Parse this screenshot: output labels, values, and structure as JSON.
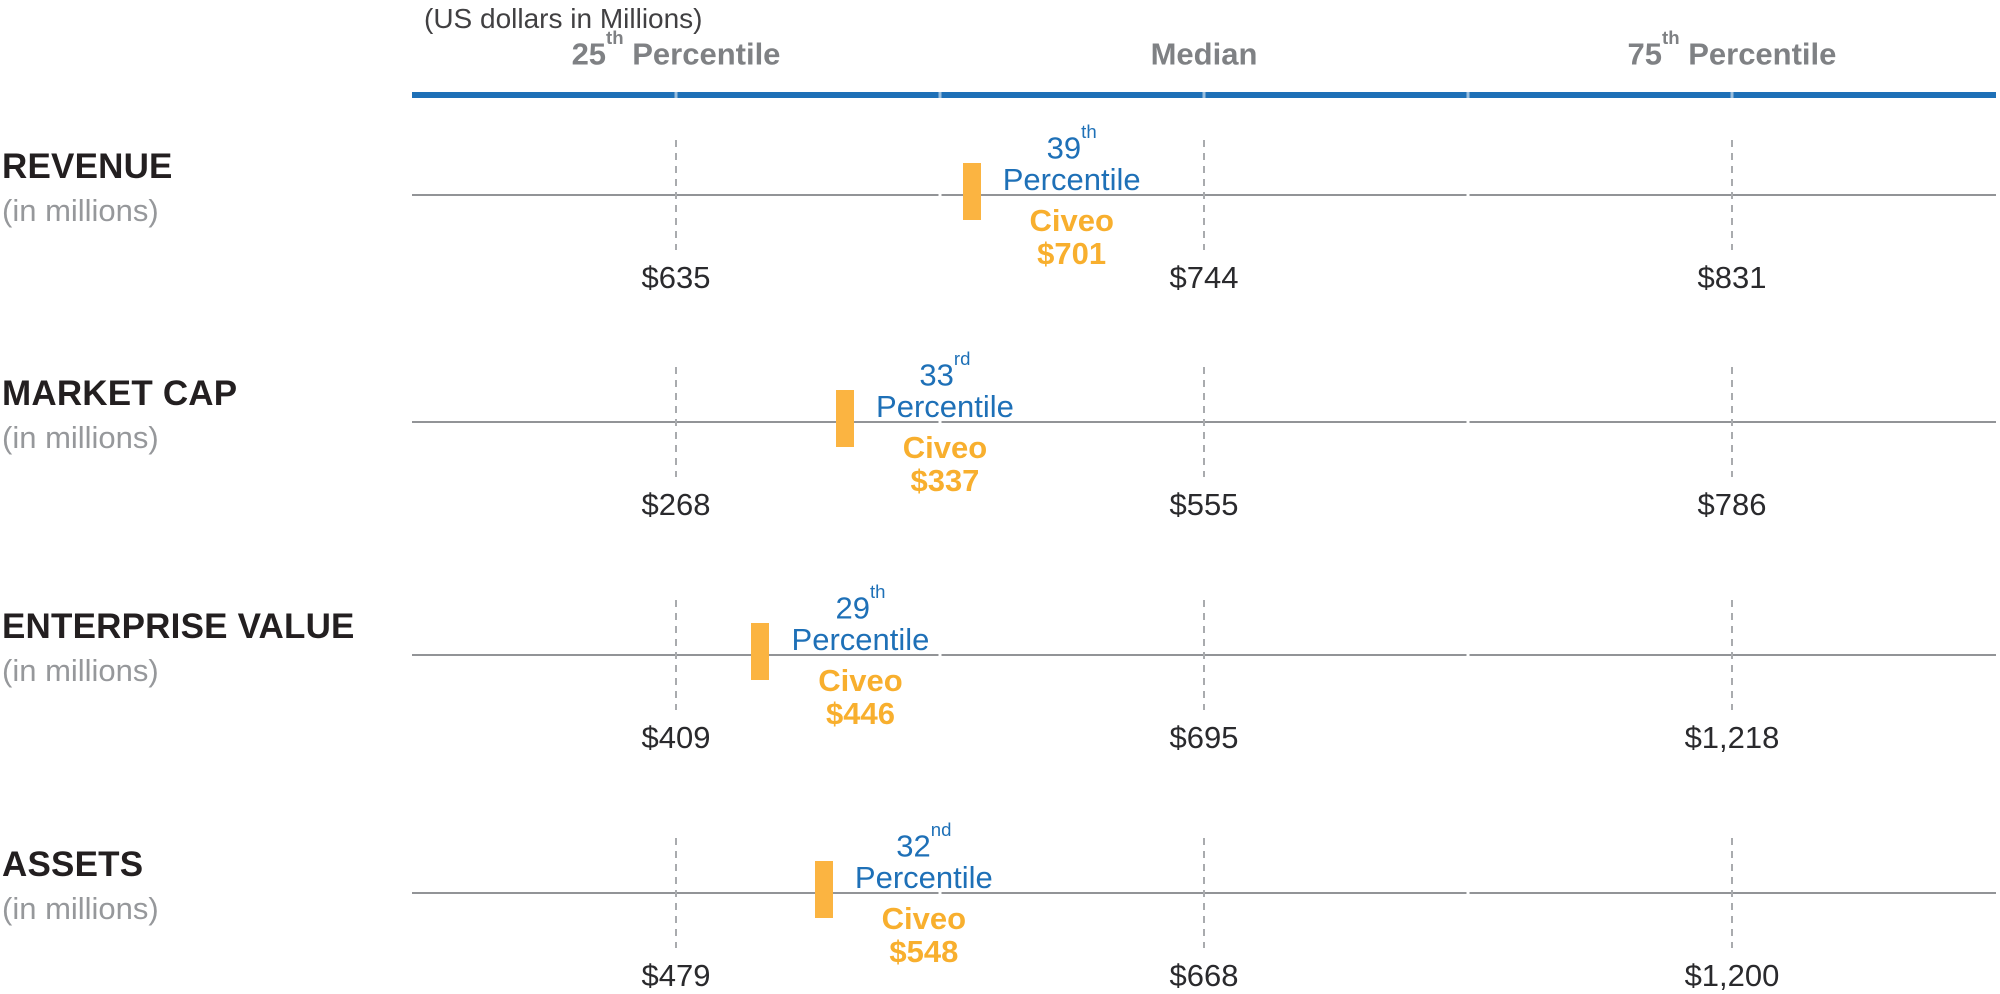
{
  "header": {
    "units_label": "(US dollars in Millions)"
  },
  "colors": {
    "accent_blue": "#1E70B7",
    "marker_orange": "#FBB441",
    "callout_orange": "#F8AF2E",
    "grid_gray": "#929497",
    "dash_gray": "#A9ABAE",
    "header_gray": "#7F8184",
    "label_black": "#231F20",
    "sub_gray": "#96989B",
    "value_black": "#2A2A2D"
  },
  "chart_data": {
    "type": "scatter",
    "subtitle": "(US dollars in Millions)",
    "legend_position": "none",
    "grid": "dashed vertical quartile lines",
    "x_axis_note": "position along each line encodes percentile rank vs peers (25th / 50th / 75th marked)",
    "header_columns": [
      {
        "text": "25",
        "sup": "th",
        "rest": " Percentile"
      },
      {
        "text": "Median",
        "sup": "",
        "rest": ""
      },
      {
        "text": "75",
        "sup": "th",
        "rest": " Percentile"
      }
    ],
    "column_axis_pct": [
      16.667,
      50,
      83.333
    ],
    "company": "Civeo",
    "rows": [
      {
        "metric": "REVENUE",
        "sublabel": "(in millions)",
        "p25": 635,
        "median": 744,
        "p75": 831,
        "p25_display": "$635",
        "median_display": "$744",
        "p75_display": "$831",
        "company": "Civeo",
        "company_value": 701,
        "company_value_display": "$701",
        "percentile": 39,
        "percentile_display": "39",
        "percentile_suffix": "th",
        "percentile_word": "Percentile"
      },
      {
        "metric": "MARKET CAP",
        "sublabel": "(in millions)",
        "p25": 268,
        "median": 555,
        "p75": 786,
        "p25_display": "$268",
        "median_display": "$555",
        "p75_display": "$786",
        "company": "Civeo",
        "company_value": 337,
        "company_value_display": "$337",
        "percentile": 33,
        "percentile_display": "33",
        "percentile_suffix": "rd",
        "percentile_word": "Percentile"
      },
      {
        "metric": "ENTERPRISE VALUE",
        "sublabel": "(in millions)",
        "p25": 409,
        "median": 695,
        "p75": 1218,
        "p25_display": "$409",
        "median_display": "$695",
        "p75_display": "$1,218",
        "company": "Civeo",
        "company_value": 446,
        "company_value_display": "$446",
        "percentile": 29,
        "percentile_display": "29",
        "percentile_suffix": "th",
        "percentile_word": "Percentile"
      },
      {
        "metric": "ASSETS",
        "sublabel": "(in millions)",
        "p25": 479,
        "median": 668,
        "p75": 1200,
        "p25_display": "$479",
        "median_display": "$668",
        "p75_display": "$1,200",
        "company": "Civeo",
        "company_value": 548,
        "company_value_display": "$548",
        "percentile": 32,
        "percentile_display": "32",
        "percentile_suffix": "nd",
        "percentile_word": "Percentile"
      }
    ]
  }
}
